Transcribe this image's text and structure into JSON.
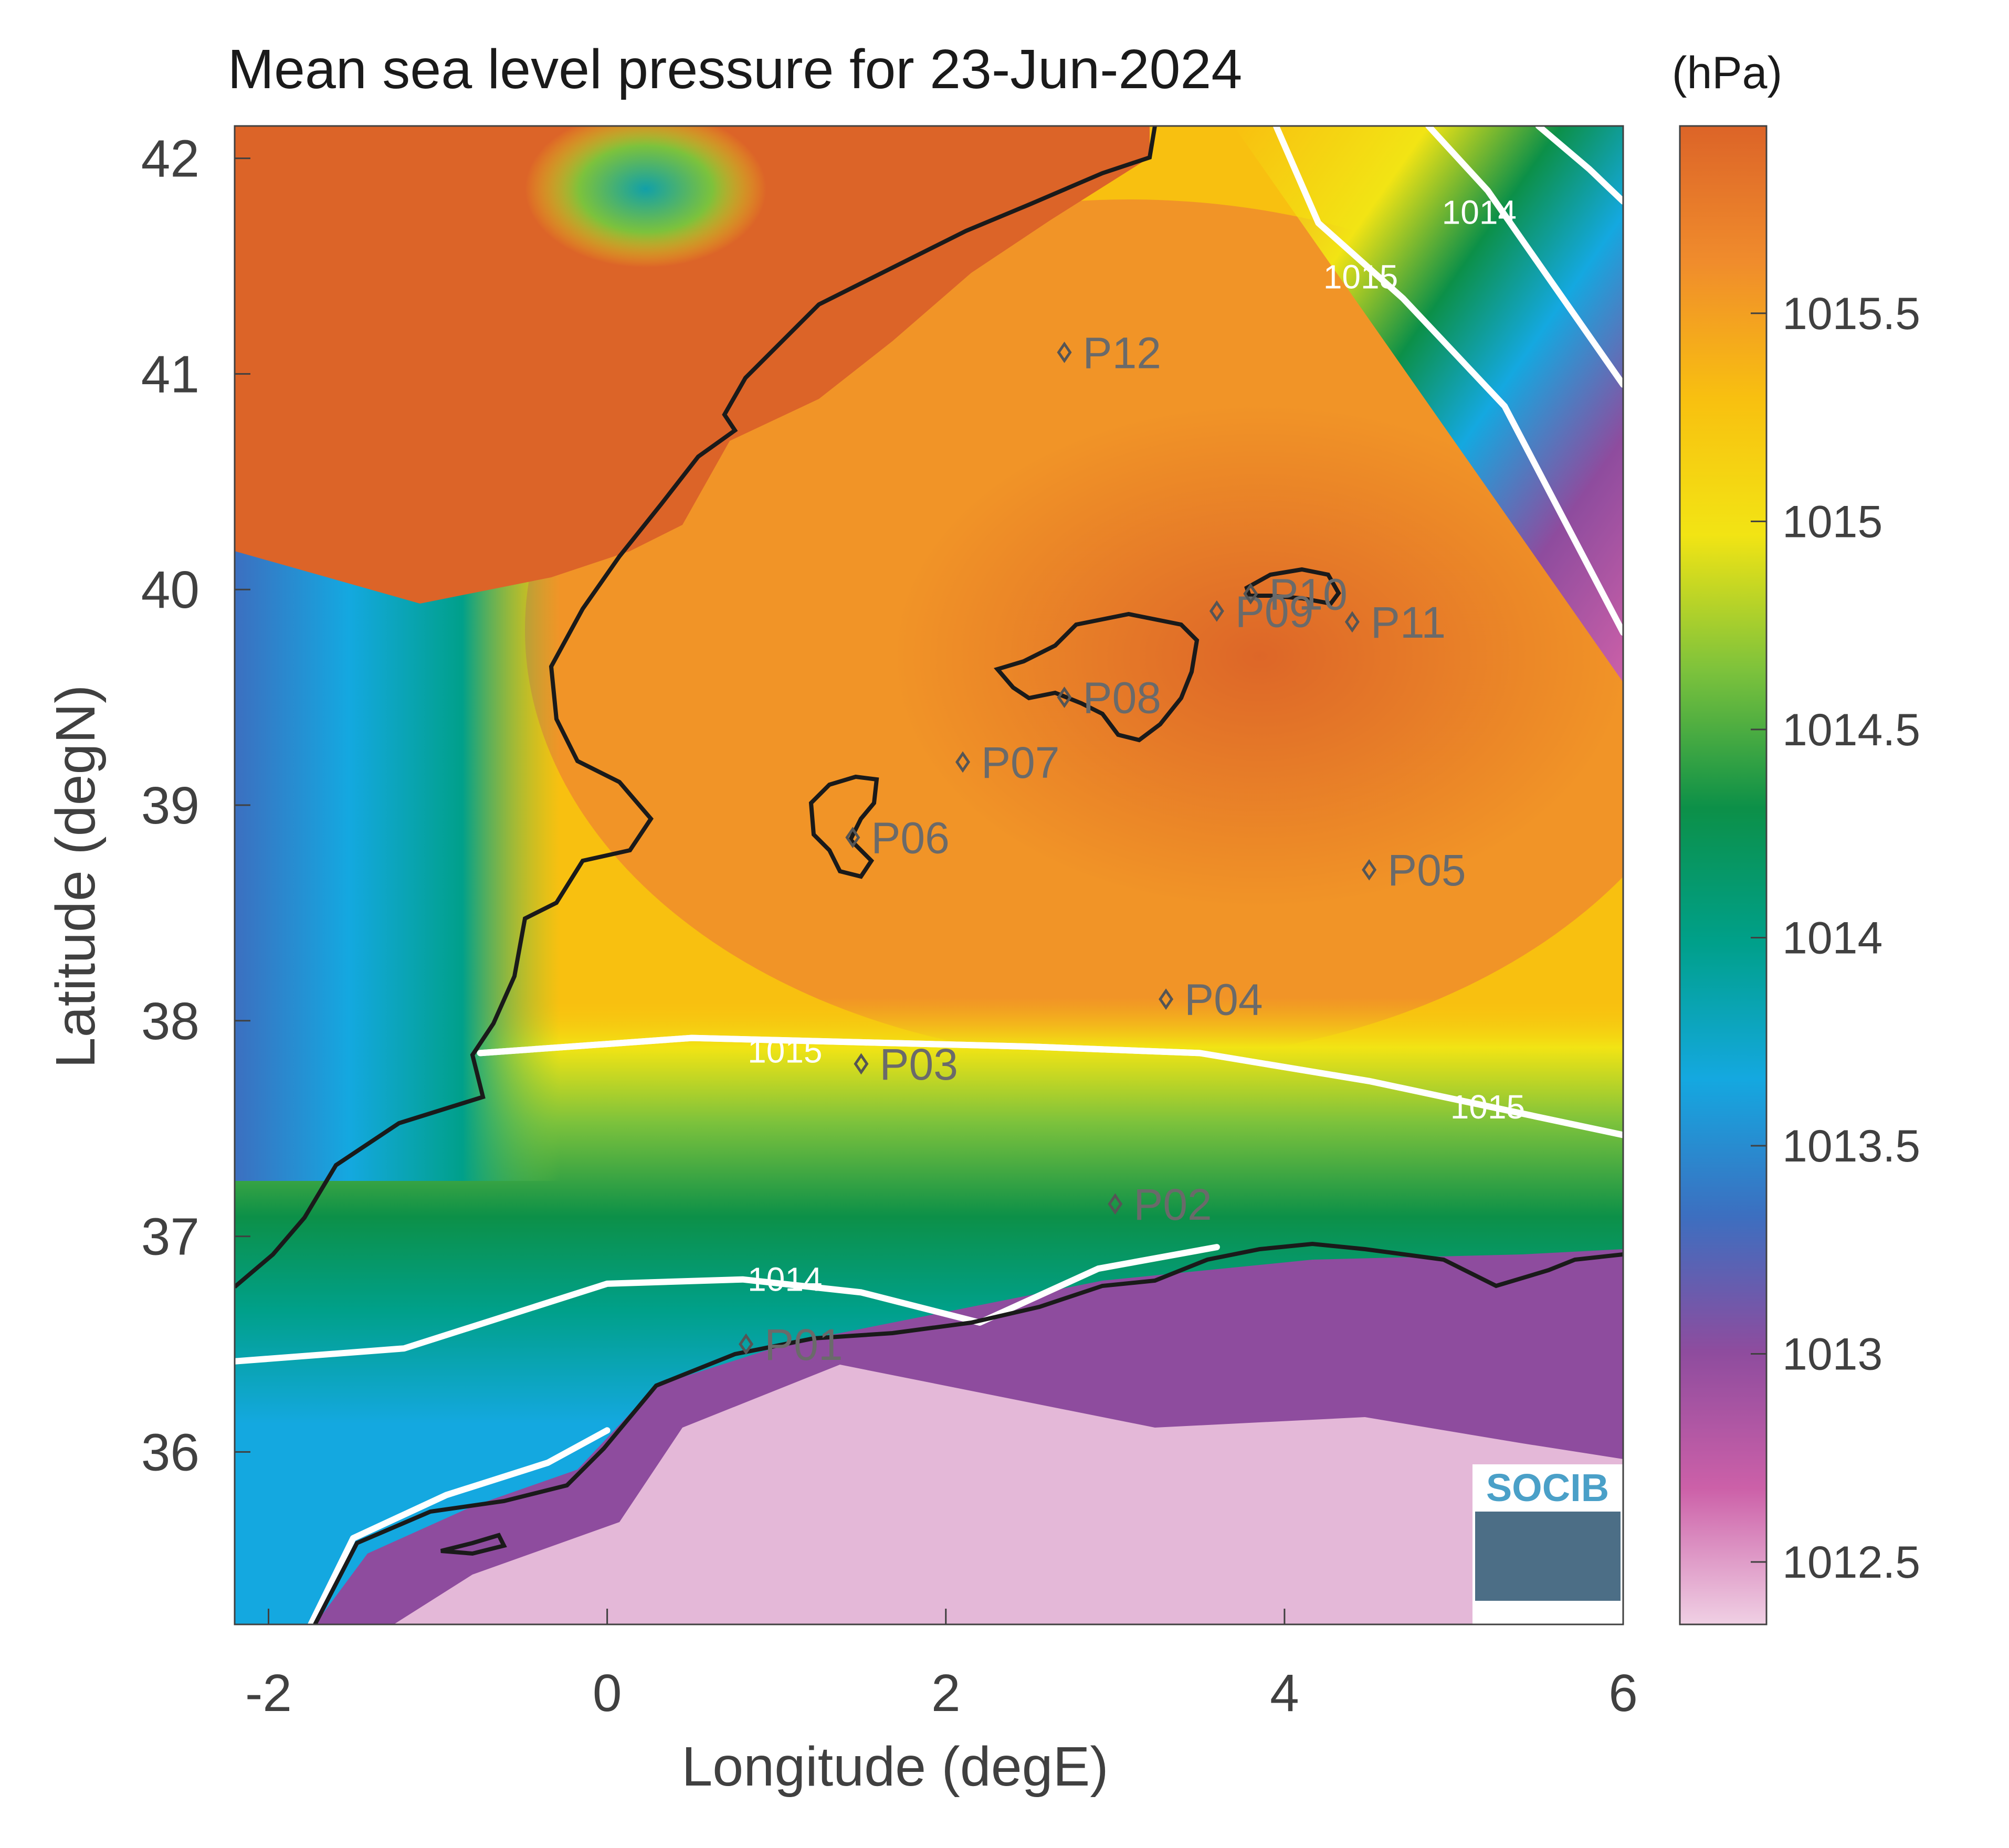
{
  "chart_data": {
    "type": "heatmap",
    "title": "Mean sea level pressure for 23-Jun-2024",
    "xlabel": "Longitude (degE)",
    "ylabel": "Latitude (degN)",
    "xlim": [
      -2.2,
      6.0
    ],
    "ylim": [
      35.2,
      42.15
    ],
    "x_ticks": [
      -2,
      0,
      2,
      4,
      6
    ],
    "x_tick_labels": [
      "-2",
      "0",
      "2",
      "4",
      "6"
    ],
    "y_ticks": [
      36,
      37,
      38,
      39,
      40,
      41,
      42
    ],
    "y_tick_labels": [
      "36",
      "37",
      "38",
      "39",
      "40",
      "41",
      "42"
    ],
    "colorbar": {
      "unit": "(hPa)",
      "range": [
        1012.35,
        1015.95
      ],
      "ticks": [
        1012.5,
        1013,
        1013.5,
        1014,
        1014.5,
        1015,
        1015.5
      ],
      "tick_labels": [
        "1012.5",
        "1013",
        "1013.5",
        "1014",
        "1014.5",
        "1015",
        "1015.5"
      ],
      "colors": [
        "#f0d0e4",
        "#cc60a8",
        "#8e4c9e",
        "#3c6fc0",
        "#14a8e0",
        "#00a08a",
        "#0c9048",
        "#7cc23c",
        "#f2e414",
        "#f8c010",
        "#f08c2c",
        "#dc6428"
      ]
    },
    "contours": [
      {
        "level": 1015,
        "label": "1015",
        "points": [
          [
            -0.75,
            37.85
          ],
          [
            0.5,
            37.92
          ],
          [
            1.5,
            37.9
          ],
          [
            2.5,
            37.88
          ],
          [
            3.5,
            37.85
          ],
          [
            4.5,
            37.72
          ],
          [
            6.0,
            37.47
          ]
        ],
        "label_at": [
          1.05,
          37.86
        ]
      },
      {
        "level": 1015,
        "label": "1015",
        "points": [
          [
            -0.75,
            37.85
          ],
          [
            0.5,
            37.92
          ],
          [
            1.5,
            37.9
          ],
          [
            2.5,
            37.88
          ],
          [
            3.5,
            37.85
          ],
          [
            4.5,
            37.72
          ],
          [
            6.0,
            37.47
          ]
        ],
        "label_at": [
          5.2,
          37.6
        ]
      },
      {
        "level": 1014,
        "label": "1014",
        "points": [
          [
            -2.2,
            36.42
          ],
          [
            -1.2,
            36.48
          ],
          [
            0.0,
            36.78
          ],
          [
            0.8,
            36.8
          ],
          [
            1.5,
            36.74
          ],
          [
            2.2,
            36.6
          ],
          [
            2.9,
            36.85
          ],
          [
            3.6,
            36.95
          ]
        ],
        "label_at": [
          1.05,
          36.8
        ]
      },
      {
        "level": 1015,
        "label": "1015",
        "points": [
          [
            3.95,
            42.15
          ],
          [
            4.2,
            41.7
          ],
          [
            4.7,
            41.35
          ],
          [
            5.3,
            40.85
          ],
          [
            6.0,
            39.8
          ]
        ],
        "label_at": [
          4.45,
          41.45
        ]
      },
      {
        "level": 1014,
        "label": "1014",
        "points": [
          [
            4.85,
            42.15
          ],
          [
            5.2,
            41.85
          ],
          [
            5.6,
            41.4
          ],
          [
            6.0,
            40.95
          ]
        ],
        "label_at": [
          5.15,
          41.75
        ]
      },
      {
        "level": 1013,
        "label": "",
        "points": [
          [
            5.5,
            42.15
          ],
          [
            5.8,
            41.95
          ],
          [
            6.0,
            41.8
          ]
        ],
        "label_at": null
      },
      {
        "level": 1014,
        "label": "",
        "points": [
          [
            -1.75,
            35.2
          ],
          [
            -1.5,
            35.6
          ],
          [
            -0.95,
            35.8
          ],
          [
            -0.35,
            35.95
          ],
          [
            0.0,
            36.1
          ]
        ],
        "label_at": null
      }
    ],
    "stations": [
      {
        "id": "P01",
        "lon": 0.82,
        "lat": 36.5
      },
      {
        "id": "P02",
        "lon": 3.0,
        "lat": 37.15
      },
      {
        "id": "P03",
        "lon": 1.5,
        "lat": 37.8
      },
      {
        "id": "P04",
        "lon": 3.3,
        "lat": 38.1
      },
      {
        "id": "P05",
        "lon": 4.5,
        "lat": 38.7
      },
      {
        "id": "P06",
        "lon": 1.45,
        "lat": 38.85
      },
      {
        "id": "P07",
        "lon": 2.1,
        "lat": 39.2
      },
      {
        "id": "P08",
        "lon": 2.7,
        "lat": 39.5
      },
      {
        "id": "P09",
        "lon": 3.6,
        "lat": 39.9
      },
      {
        "id": "P10",
        "lon": 3.8,
        "lat": 39.98
      },
      {
        "id": "P11",
        "lon": 4.4,
        "lat": 39.85
      },
      {
        "id": "P12",
        "lon": 2.7,
        "lat": 41.1
      }
    ]
  },
  "logo": {
    "text": "SOCIB"
  }
}
